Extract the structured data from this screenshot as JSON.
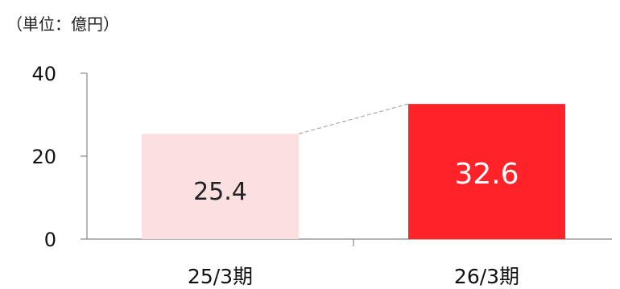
{
  "unit_label": "（単位：億円）",
  "chart_data": {
    "type": "bar",
    "categories": [
      "25/3期",
      "26/3期"
    ],
    "values": [
      25.4,
      32.6
    ],
    "data_labels": [
      "25.4",
      "32.6"
    ],
    "y_ticks": [
      0,
      20,
      40
    ],
    "ylim": [
      0,
      40
    ],
    "colors": [
      "#fbe0e2",
      "#ff2329"
    ],
    "label_colors": [
      "#222222",
      "#ffffff"
    ],
    "connector_color": "#aaaaaa",
    "axis_color": "#888888",
    "grid": false,
    "legend": "none"
  }
}
